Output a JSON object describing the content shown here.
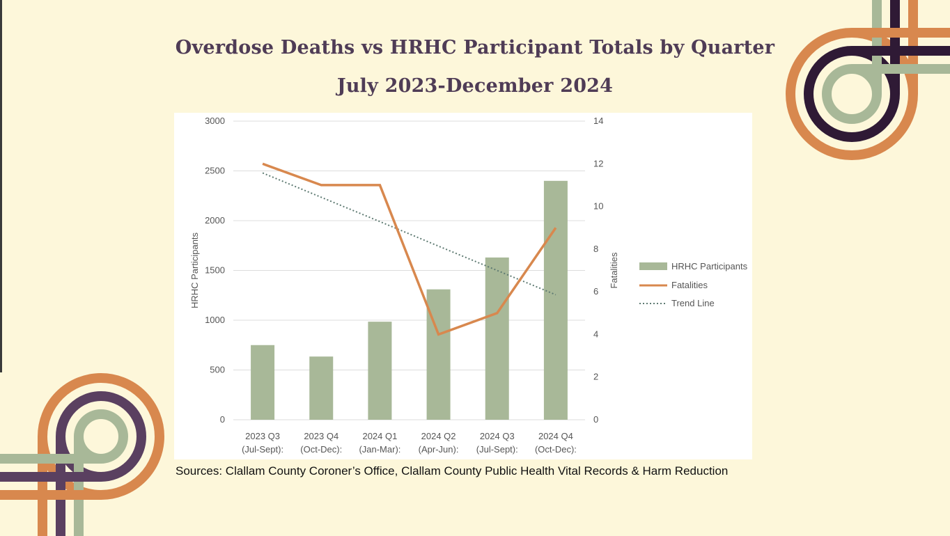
{
  "title_line1": "Overdose Deaths vs HRHC Participant Totals by Quarter",
  "title_line2": "July 2023-December 2024",
  "sources": "Sources: Clallam County Coroner’s Office, Clallam County Public Health Vital Records & Harm Reduction",
  "colors": {
    "background": "#fdf7da",
    "title": "#4f3c56",
    "bars": "#a8b898",
    "fatalities_line": "#d8884e",
    "trend_line": "#5e7a72",
    "deco_orange": "#d8884e",
    "deco_purple": "#2f1a35",
    "deco_purple_light": "#5a4060",
    "deco_green": "#a8b898"
  },
  "chart_data": {
    "type": "bar",
    "categories": [
      [
        "2023 Q3",
        "(Jul-Sept):"
      ],
      [
        "2023 Q4",
        "(Oct-Dec):"
      ],
      [
        "2024 Q1",
        "(Jan-Mar):"
      ],
      [
        "2024 Q2",
        "(Apr-Jun):"
      ],
      [
        "2024 Q3",
        "(Jul-Sept):"
      ],
      [
        "2024 Q4",
        "(Oct-Dec):"
      ]
    ],
    "series": [
      {
        "name": "HRHC Participants",
        "type": "bar",
        "axis": "left",
        "values": [
          750,
          635,
          985,
          1310,
          1630,
          2400
        ]
      },
      {
        "name": "Fatalities",
        "type": "line",
        "axis": "right",
        "values": [
          12,
          11,
          11,
          4,
          5,
          9
        ]
      },
      {
        "name": "Trend Line",
        "type": "line-dotted",
        "axis": "right",
        "values": [
          11.57,
          10.43,
          9.29,
          8.14,
          7.0,
          5.86
        ]
      }
    ],
    "ylabel_left": "HRHC Participants",
    "ylabel_right": "Fatalities",
    "ylim_left": [
      0,
      3000
    ],
    "yticks_left": [
      0,
      500,
      1000,
      1500,
      2000,
      2500,
      3000
    ],
    "ylim_right": [
      0,
      14
    ],
    "yticks_right": [
      0,
      2,
      4,
      6,
      8,
      10,
      12,
      14
    ],
    "grid": true,
    "legend_position": "right"
  }
}
